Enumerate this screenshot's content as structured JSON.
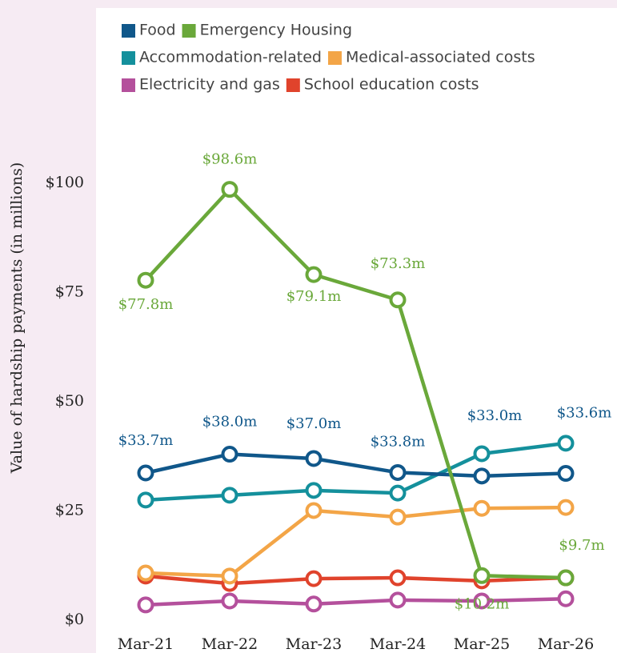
{
  "chart_data": {
    "type": "line",
    "y_label": "Value of hardship payments (in millions)",
    "categories": [
      "Mar-21",
      "Mar-22",
      "Mar-23",
      "Mar-24",
      "Mar-25",
      "Mar-26"
    ],
    "ylim": [
      0,
      100
    ],
    "yticks": [
      {
        "value": 0,
        "label": "$0"
      },
      {
        "value": 25,
        "label": "$25"
      },
      {
        "value": 50,
        "label": "$50"
      },
      {
        "value": 75,
        "label": "$75"
      },
      {
        "value": 100,
        "label": "$100"
      }
    ],
    "legend": "top-left",
    "series": [
      {
        "name": "Food",
        "color": "#10578a",
        "values": [
          33.7,
          38.0,
          37.0,
          33.8,
          33.0,
          33.6
        ],
        "value_labels": [
          "$33.7m",
          "$38.0m",
          "$37.0m",
          "$33.8m",
          "$33.0m",
          "$33.6m"
        ]
      },
      {
        "name": "Emergency Housing",
        "color": "#6aa83a",
        "values": [
          77.8,
          98.6,
          79.1,
          73.3,
          10.2,
          9.7
        ],
        "value_labels": [
          "$77.8m",
          "$98.6m",
          "$79.1m",
          "$73.3m",
          "$10.2m",
          "$9.7m"
        ]
      },
      {
        "name": "Accommodation-related",
        "color": "#14909c",
        "values": [
          27.5,
          28.6,
          29.7,
          29.1,
          38.1,
          40.5
        ]
      },
      {
        "name": "Medical-associated costs",
        "color": "#f3a547",
        "values": [
          10.8,
          10.1,
          25.1,
          23.6,
          25.6,
          25.8
        ]
      },
      {
        "name": "Electricity and gas",
        "color": "#b4509c",
        "values": [
          3.5,
          4.4,
          3.7,
          4.6,
          4.4,
          4.9
        ]
      },
      {
        "name": "School education costs",
        "color": "#e0432c",
        "values": [
          10.1,
          8.4,
          9.5,
          9.7,
          9.0,
          9.7
        ]
      }
    ]
  }
}
